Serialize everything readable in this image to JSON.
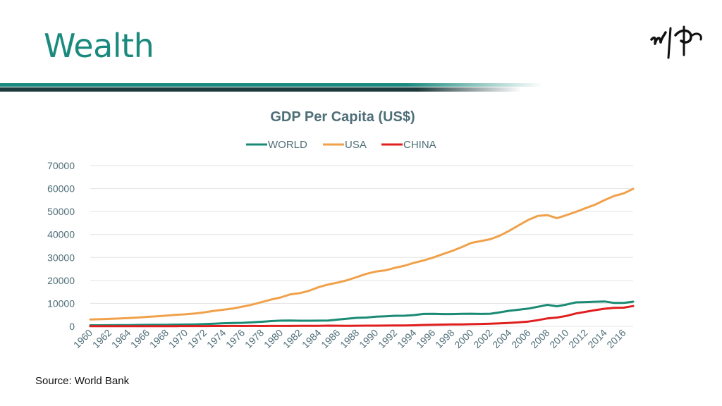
{
  "slide": {
    "title": "Wealth",
    "source": "Source: World Bank",
    "logo_icon": "brush-logo-icon"
  },
  "colors": {
    "accent": "#1b8a7e",
    "world": "#1a8a74",
    "usa": "#f0a14a",
    "china": "#e01e1e",
    "text": "#4f6e78"
  },
  "chart_data": {
    "type": "line",
    "title": "GDP Per Capita (US$)",
    "xlabel": "",
    "ylabel": "",
    "ylim": [
      0,
      70000
    ],
    "yticks": [
      0,
      10000,
      20000,
      30000,
      40000,
      50000,
      60000,
      70000
    ],
    "x": [
      1960,
      1961,
      1962,
      1963,
      1964,
      1965,
      1966,
      1967,
      1968,
      1969,
      1970,
      1971,
      1972,
      1973,
      1974,
      1975,
      1976,
      1977,
      1978,
      1979,
      1980,
      1981,
      1982,
      1983,
      1984,
      1985,
      1986,
      1987,
      1988,
      1989,
      1990,
      1991,
      1992,
      1993,
      1994,
      1995,
      1996,
      1997,
      1998,
      1999,
      2000,
      2001,
      2002,
      2003,
      2004,
      2005,
      2006,
      2007,
      2008,
      2009,
      2010,
      2011,
      2012,
      2013,
      2014,
      2015,
      2016,
      2017
    ],
    "xtick_labels": [
      "1960",
      "1962",
      "1964",
      "1966",
      "1968",
      "1970",
      "1972",
      "1974",
      "1976",
      "1978",
      "1980",
      "1982",
      "1984",
      "1986",
      "1988",
      "1990",
      "1992",
      "1994",
      "1996",
      "1998",
      "2000",
      "2002",
      "2004",
      "2006",
      "2008",
      "2010",
      "2012",
      "2014",
      "2016"
    ],
    "legend": "top",
    "grid": true,
    "series": [
      {
        "name": "WORLD",
        "color": "#1a8a74",
        "values": [
          450,
          470,
          490,
          520,
          560,
          600,
          640,
          670,
          700,
          760,
          800,
          870,
          980,
          1180,
          1350,
          1450,
          1550,
          1750,
          2000,
          2300,
          2500,
          2550,
          2450,
          2450,
          2500,
          2550,
          2950,
          3350,
          3700,
          3850,
          4250,
          4400,
          4600,
          4650,
          4900,
          5400,
          5450,
          5350,
          5350,
          5450,
          5500,
          5400,
          5500,
          6100,
          6800,
          7250,
          7750,
          8550,
          9350,
          8750,
          9500,
          10450,
          10550,
          10700,
          10850,
          10200,
          10200,
          10750
        ]
      },
      {
        "name": "USA",
        "color": "#f0a14a",
        "values": [
          3000,
          3100,
          3250,
          3400,
          3600,
          3850,
          4150,
          4350,
          4700,
          5050,
          5250,
          5600,
          6100,
          6750,
          7250,
          7800,
          8600,
          9450,
          10550,
          11700,
          12600,
          13950,
          14450,
          15550,
          17100,
          18250,
          19100,
          20100,
          21500,
          22900,
          23900,
          24400,
          25500,
          26400,
          27700,
          28700,
          29950,
          31450,
          32850,
          34500,
          36350,
          37150,
          37950,
          39500,
          41650,
          44050,
          46400,
          48100,
          48450,
          47100,
          48450,
          49900,
          51500,
          53000,
          55000,
          56800,
          57900,
          59900
        ]
      },
      {
        "name": "CHINA",
        "color": "#e01e1e",
        "values": [
          90,
          76,
          70,
          74,
          85,
          98,
          104,
          97,
          91,
          100,
          113,
          118,
          132,
          156,
          160,
          178,
          165,
          185,
          156,
          183,
          195,
          197,
          203,
          225,
          250,
          294,
          281,
          251,
          283,
          311,
          318,
          333,
          366,
          377,
          473,
          610,
          709,
          781,
          829,
          873,
          959,
          1053,
          1149,
          1289,
          1509,
          1753,
          2099,
          2694,
          3468,
          3832,
          4550,
          5618,
          6317,
          7051,
          7679,
          8067,
          8148,
          8827
        ]
      }
    ]
  }
}
